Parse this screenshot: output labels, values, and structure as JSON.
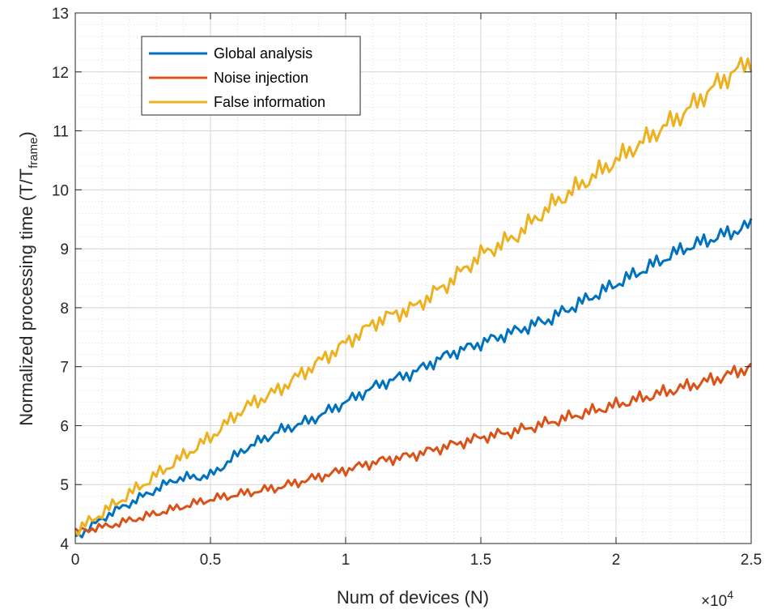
{
  "chart_data": {
    "type": "line",
    "title": "",
    "xlabel": "Num of devices (N)",
    "ylabel_main": "Normalized processing time (T/T",
    "ylabel_sub": "frame",
    "ylabel_close": ")",
    "x_exponent_label": "×10",
    "x_exponent_power": "4",
    "xlim": [
      0,
      2.5
    ],
    "ylim": [
      4,
      13
    ],
    "x_ticks": [
      0,
      0.5,
      1,
      1.5,
      2,
      2.5
    ],
    "x_tick_labels": [
      "0",
      "0.5",
      "1",
      "1.5",
      "2",
      "2.5"
    ],
    "y_ticks": [
      4,
      5,
      6,
      7,
      8,
      9,
      10,
      11,
      12,
      13
    ],
    "y_tick_labels": [
      "4",
      "5",
      "6",
      "7",
      "8",
      "9",
      "10",
      "11",
      "12",
      "13"
    ],
    "grid": true,
    "minor_grid": true,
    "legend_position": "top-left",
    "series": [
      {
        "name": "Global analysis",
        "color": "#0072BD",
        "x": [
          0,
          0.125,
          0.25,
          0.375,
          0.5,
          0.625,
          0.75,
          0.875,
          1.0,
          1.125,
          1.25,
          1.375,
          1.5,
          1.625,
          1.75,
          1.875,
          2.0,
          2.125,
          2.25,
          2.375,
          2.5
        ],
        "y": [
          4.1,
          4.5,
          4.8,
          5.1,
          5.15,
          5.6,
          5.9,
          6.1,
          6.4,
          6.7,
          6.9,
          7.2,
          7.4,
          7.6,
          7.8,
          8.1,
          8.4,
          8.7,
          9.0,
          9.2,
          9.4
        ]
      },
      {
        "name": "Noise injection",
        "color": "#D95319",
        "x": [
          0,
          0.125,
          0.25,
          0.375,
          0.5,
          0.625,
          0.75,
          0.875,
          1.0,
          1.125,
          1.25,
          1.375,
          1.5,
          1.625,
          1.75,
          1.875,
          2.0,
          2.125,
          2.25,
          2.375,
          2.5
        ],
        "y": [
          4.2,
          4.3,
          4.45,
          4.6,
          4.75,
          4.85,
          4.95,
          5.1,
          5.25,
          5.4,
          5.5,
          5.65,
          5.8,
          5.9,
          6.05,
          6.2,
          6.35,
          6.5,
          6.65,
          6.8,
          7.0
        ]
      },
      {
        "name": "False information",
        "color": "#EDB120",
        "x": [
          0,
          0.125,
          0.25,
          0.375,
          0.5,
          0.625,
          0.75,
          0.875,
          1.0,
          1.125,
          1.25,
          1.375,
          1.5,
          1.625,
          1.75,
          1.875,
          2.0,
          2.125,
          2.25,
          2.375,
          2.5
        ],
        "y": [
          4.2,
          4.6,
          5.0,
          5.4,
          5.8,
          6.3,
          6.6,
          7.0,
          7.4,
          7.8,
          8.0,
          8.4,
          8.9,
          9.2,
          9.7,
          10.1,
          10.5,
          10.9,
          11.3,
          11.8,
          12.2
        ]
      }
    ]
  }
}
